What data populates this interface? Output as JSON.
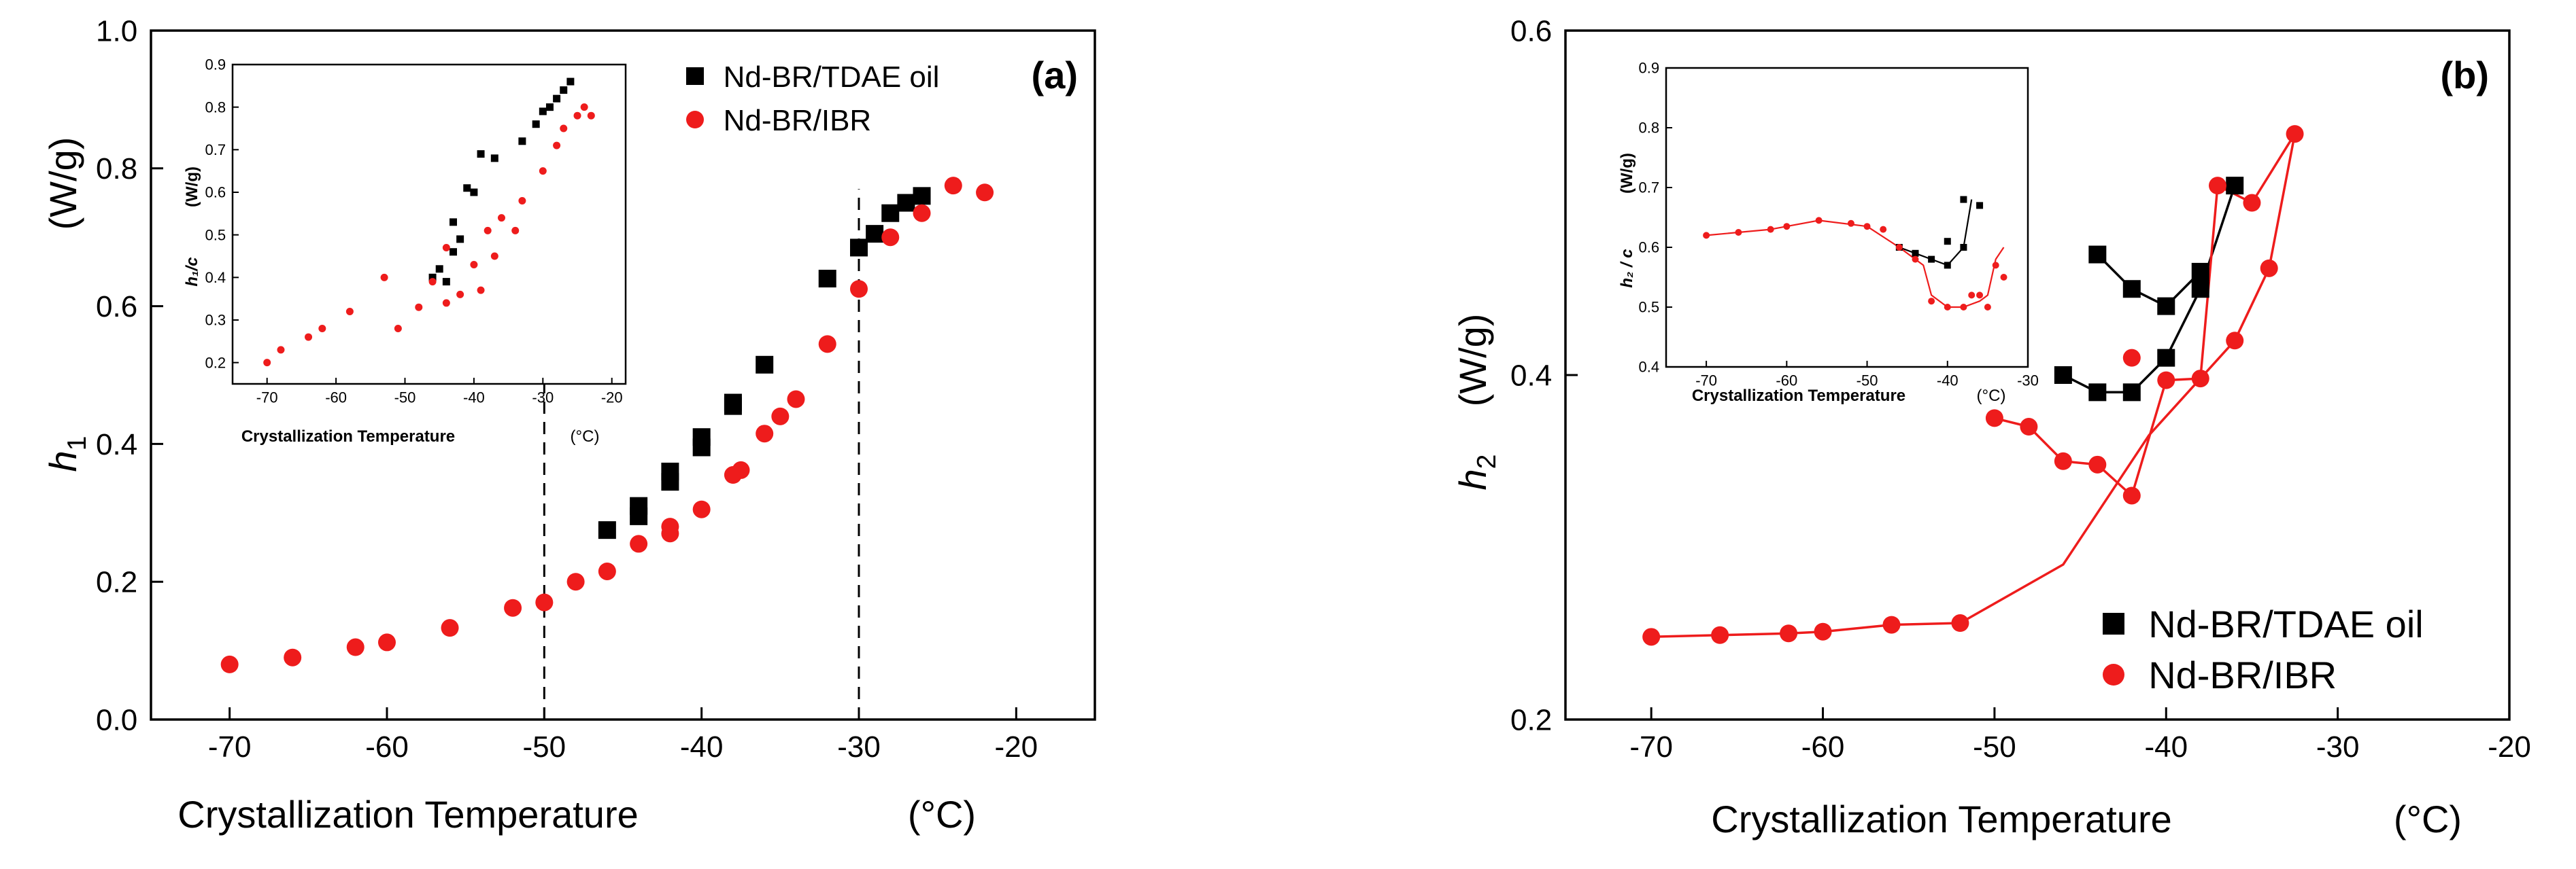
{
  "chart_data": [
    {
      "id": "a",
      "type": "scatter",
      "panel_label": "(a)",
      "xlabel": "Crystallization Temperature",
      "xunit": "(°C)",
      "ylabel_symbol": "h",
      "ylabel_sub": "1",
      "yunit": "(W/g)",
      "xlim": [
        -75,
        -15
      ],
      "ylim": [
        0,
        1.0
      ],
      "xticks": [
        -70,
        -60,
        -50,
        -40,
        -30,
        -20
      ],
      "yticks": [
        0.0,
        0.2,
        0.4,
        0.6,
        0.8,
        1.0
      ],
      "ytick_labels": [
        "0.0",
        "0.2",
        "0.4",
        "0.6",
        "0.8",
        "1.0"
      ],
      "legend_position": "top-right",
      "reference_lines_x": [
        -50,
        -30
      ],
      "series": [
        {
          "name": "Nd-BR/TDAE oil",
          "color": "#000000",
          "marker": "square",
          "points": [
            [
              -46,
              0.275
            ],
            [
              -44,
              0.295
            ],
            [
              -44,
              0.31
            ],
            [
              -42,
              0.345
            ],
            [
              -42,
              0.36
            ],
            [
              -40,
              0.395
            ],
            [
              -40,
              0.41
            ],
            [
              -38,
              0.455
            ],
            [
              -38,
              0.46
            ],
            [
              -36,
              0.515
            ],
            [
              -32,
              0.64
            ],
            [
              -30,
              0.685
            ],
            [
              -29,
              0.705
            ],
            [
              -28,
              0.735
            ],
            [
              -27,
              0.75
            ],
            [
              -26,
              0.76
            ]
          ]
        },
        {
          "name": "Nd-BR/IBR",
          "color": "#ee1c1c",
          "marker": "circle",
          "points": [
            [
              -70,
              0.08
            ],
            [
              -66,
              0.09
            ],
            [
              -62,
              0.105
            ],
            [
              -60,
              0.112
            ],
            [
              -56,
              0.133
            ],
            [
              -52,
              0.162
            ],
            [
              -50,
              0.17
            ],
            [
              -48,
              0.2
            ],
            [
              -46,
              0.215
            ],
            [
              -44,
              0.255
            ],
            [
              -42,
              0.27
            ],
            [
              -42,
              0.28
            ],
            [
              -40,
              0.305
            ],
            [
              -38,
              0.355
            ],
            [
              -37.5,
              0.362
            ],
            [
              -36,
              0.415
            ],
            [
              -35,
              0.44
            ],
            [
              -34,
              0.465
            ],
            [
              -32,
              0.545
            ],
            [
              -30,
              0.625
            ],
            [
              -28,
              0.7
            ],
            [
              -26,
              0.735
            ],
            [
              -24,
              0.775
            ],
            [
              -22,
              0.765
            ]
          ]
        }
      ],
      "inset": {
        "xlabel": "Crystallization Temperature",
        "xunit": "(°C)",
        "ylabel": "h₁/c",
        "yunit": "(W/g)",
        "xlim": [
          -75,
          -18
        ],
        "ylim": [
          0.15,
          0.9
        ],
        "xticks": [
          -70,
          -60,
          -50,
          -40,
          -30,
          -20
        ],
        "yticks": [
          0.2,
          0.3,
          0.4,
          0.5,
          0.6,
          0.7,
          0.8,
          0.9
        ],
        "ytick_labels": [
          "0.2",
          "0.3",
          "0.4",
          "0.5",
          "0.6",
          "0.7",
          "0.8",
          "0.9"
        ],
        "series": [
          {
            "name": "Nd-BR/TDAE oil",
            "color": "#000000",
            "marker": "square",
            "points": [
              [
                -46,
                0.4
              ],
              [
                -45,
                0.42
              ],
              [
                -44,
                0.39
              ],
              [
                -43,
                0.46
              ],
              [
                -43,
                0.53
              ],
              [
                -42,
                0.49
              ],
              [
                -41,
                0.61
              ],
              [
                -40,
                0.6
              ],
              [
                -39,
                0.69
              ],
              [
                -37,
                0.68
              ],
              [
                -33,
                0.72
              ],
              [
                -31,
                0.76
              ],
              [
                -30,
                0.79
              ],
              [
                -29,
                0.8
              ],
              [
                -28,
                0.82
              ],
              [
                -27,
                0.84
              ],
              [
                -26,
                0.86
              ]
            ]
          },
          {
            "name": "Nd-BR/IBR",
            "color": "#ee1c1c",
            "marker": "circle",
            "points": [
              [
                -70,
                0.2
              ],
              [
                -68,
                0.23
              ],
              [
                -64,
                0.26
              ],
              [
                -62,
                0.28
              ],
              [
                -58,
                0.32
              ],
              [
                -53,
                0.4
              ],
              [
                -51,
                0.28
              ],
              [
                -48,
                0.33
              ],
              [
                -46,
                0.39
              ],
              [
                -44,
                0.34
              ],
              [
                -44,
                0.47
              ],
              [
                -42,
                0.36
              ],
              [
                -40,
                0.43
              ],
              [
                -39,
                0.37
              ],
              [
                -38,
                0.51
              ],
              [
                -37,
                0.45
              ],
              [
                -36,
                0.54
              ],
              [
                -34,
                0.51
              ],
              [
                -33,
                0.58
              ],
              [
                -30,
                0.65
              ],
              [
                -28,
                0.71
              ],
              [
                -27,
                0.75
              ],
              [
                -25,
                0.78
              ],
              [
                -24,
                0.8
              ],
              [
                -23,
                0.78
              ]
            ]
          }
        ]
      }
    },
    {
      "id": "b",
      "type": "line",
      "panel_label": "(b)",
      "xlabel": "Crystallization Temperature",
      "xunit": "(°C)",
      "ylabel_symbol": "h",
      "ylabel_sub": "2",
      "yunit": "(W/g)",
      "xlim": [
        -75,
        -20
      ],
      "ylim": [
        0.2,
        0.6
      ],
      "xticks": [
        -70,
        -60,
        -50,
        -40,
        -30,
        -20
      ],
      "yticks": [
        0.2,
        0.4,
        0.6
      ],
      "ytick_labels": [
        "0.2",
        "0.4",
        "0.6"
      ],
      "legend_position": "bottom-right",
      "series": [
        {
          "name": "Nd-BR/TDAE oil",
          "color": "#000000",
          "marker": "square",
          "points": [
            [
              -46,
              0.4
            ],
            [
              -44,
              0.47
            ],
            [
              -44,
              0.39
            ],
            [
              -42,
              0.45
            ],
            [
              -42,
              0.39
            ],
            [
              -40,
              0.44
            ],
            [
              -40,
              0.41
            ],
            [
              -38,
              0.46
            ],
            [
              -38,
              0.45
            ],
            [
              -36,
              0.51
            ]
          ],
          "line": [
            [
              -46,
              0.4
            ],
            [
              -44,
              0.39
            ],
            [
              -42,
              0.39
            ],
            [
              -40,
              0.41
            ],
            [
              -38,
              0.45
            ],
            [
              -36,
              0.51
            ]
          ],
          "line2": [
            [
              -44,
              0.47
            ],
            [
              -42,
              0.45
            ],
            [
              -40,
              0.44
            ],
            [
              -38,
              0.46
            ],
            [
              -38,
              0.45
            ]
          ]
        },
        {
          "name": "Nd-BR/IBR",
          "color": "#ee1c1c",
          "marker": "circle",
          "points": [
            [
              -70,
              0.248
            ],
            [
              -66,
              0.249
            ],
            [
              -62,
              0.25
            ],
            [
              -60,
              0.251
            ],
            [
              -56,
              0.255
            ],
            [
              -52,
              0.256
            ],
            [
              -50,
              0.375
            ],
            [
              -48,
              0.37
            ],
            [
              -46,
              0.35
            ],
            [
              -44,
              0.348
            ],
            [
              -42,
              0.33
            ],
            [
              -42,
              0.41
            ],
            [
              -40,
              0.397
            ],
            [
              -38,
              0.398
            ],
            [
              -37,
              0.51
            ],
            [
              -36,
              0.42
            ],
            [
              -35,
              0.5
            ],
            [
              -34,
              0.462
            ],
            [
              -32.5,
              0.54
            ]
          ],
          "line": [
            [
              -70,
              0.248
            ],
            [
              -66,
              0.249
            ],
            [
              -62,
              0.25
            ],
            [
              -60,
              0.251
            ],
            [
              -56,
              0.255
            ],
            [
              -52,
              0.256
            ],
            [
              -46,
              0.29
            ],
            [
              -41,
              0.365
            ],
            [
              -36,
              0.42
            ],
            [
              -34,
              0.462
            ],
            [
              -32.5,
              0.54
            ]
          ],
          "line2": [
            [
              -50,
              0.375
            ],
            [
              -48,
              0.37
            ],
            [
              -46,
              0.35
            ],
            [
              -44,
              0.348
            ],
            [
              -42,
              0.33
            ],
            [
              -40,
              0.397
            ],
            [
              -38,
              0.398
            ],
            [
              -37,
              0.51
            ],
            [
              -35,
              0.5
            ],
            [
              -32.5,
              0.54
            ]
          ]
        }
      ],
      "inset": {
        "xlabel": "Crystallization Temperature",
        "xunit": "(°C)",
        "ylabel": "h₂ / c",
        "yunit": "(W/g)",
        "xlim": [
          -75,
          -30
        ],
        "ylim": [
          0.4,
          0.9
        ],
        "xticks": [
          -70,
          -60,
          -50,
          -40,
          -30
        ],
        "yticks": [
          0.4,
          0.5,
          0.6,
          0.7,
          0.8,
          0.9
        ],
        "ytick_labels": [
          "0.4",
          "0.5",
          "0.6",
          "0.7",
          "0.8",
          "0.9"
        ],
        "series": [
          {
            "name": "Nd-BR/TDAE oil",
            "color": "#000000",
            "marker": "square",
            "points": [
              [
                -46,
                0.6
              ],
              [
                -44,
                0.59
              ],
              [
                -42,
                0.58
              ],
              [
                -40,
                0.57
              ],
              [
                -40,
                0.61
              ],
              [
                -38,
                0.6
              ],
              [
                -38,
                0.68
              ],
              [
                -36,
                0.67
              ]
            ],
            "line": [
              [
                -46,
                0.6
              ],
              [
                -44,
                0.59
              ],
              [
                -42,
                0.58
              ],
              [
                -40,
                0.57
              ],
              [
                -38,
                0.6
              ],
              [
                -37,
                0.68
              ]
            ]
          },
          {
            "name": "Nd-BR/IBR",
            "color": "#ee1c1c",
            "marker": "circle",
            "points": [
              [
                -70,
                0.62
              ],
              [
                -66,
                0.625
              ],
              [
                -62,
                0.63
              ],
              [
                -60,
                0.635
              ],
              [
                -56,
                0.645
              ],
              [
                -52,
                0.64
              ],
              [
                -50,
                0.635
              ],
              [
                -48,
                0.63
              ],
              [
                -46,
                0.6
              ],
              [
                -44,
                0.58
              ],
              [
                -42,
                0.51
              ],
              [
                -40,
                0.5
              ],
              [
                -38,
                0.5
              ],
              [
                -37,
                0.52
              ],
              [
                -36,
                0.52
              ],
              [
                -35,
                0.5
              ],
              [
                -34,
                0.57
              ],
              [
                -33,
                0.55
              ]
            ],
            "line": [
              [
                -70,
                0.62
              ],
              [
                -62,
                0.63
              ],
              [
                -56,
                0.645
              ],
              [
                -50,
                0.635
              ],
              [
                -46,
                0.6
              ],
              [
                -43,
                0.57
              ],
              [
                -42,
                0.52
              ],
              [
                -40,
                0.5
              ],
              [
                -38,
                0.5
              ],
              [
                -36,
                0.51
              ],
              [
                -35,
                0.52
              ],
              [
                -34,
                0.58
              ],
              [
                -33,
                0.6
              ]
            ]
          }
        ]
      }
    }
  ]
}
